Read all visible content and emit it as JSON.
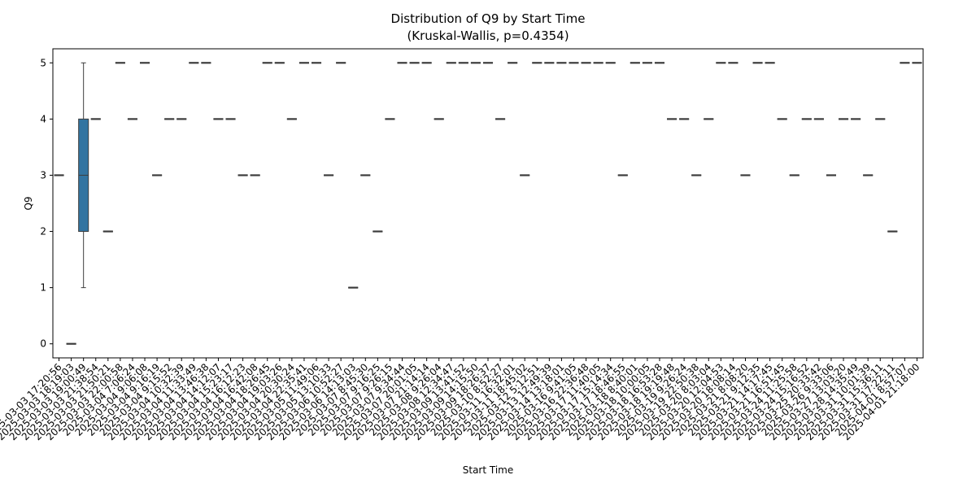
{
  "chart_data": {
    "type": "box",
    "title": "Distribution of Q9 by Start Time",
    "subtitle": "(Kruskal-Wallis, p=0.4354)",
    "x_label": "Start Time",
    "y_label": "Q9",
    "color": "#3274a1",
    "edge_color": "#3d3d3d",
    "ylim": [
      -0.25,
      5.25
    ],
    "yticks": [
      0,
      1,
      2,
      3,
      4,
      5
    ],
    "categories": [
      "2025-03-03 17:20:56",
      "2025-03-03 18:19:03",
      "2025-03-03 19:00:49",
      "2025-03-03 21:38:54",
      "2025-03-03 21:50:21",
      "2025-03-03 22:00:58",
      "2025-03-04 7:06:24",
      "2025-03-04 9:06:08",
      "2025-03-04 9:16:19",
      "2025-03-04 9:15:52",
      "2025-03-04 10:32:39",
      "2025-03-04 11:33:49",
      "2025-03-04 13:46:38",
      "2025-03-04 14:12:07",
      "2025-03-04 15:23:17",
      "2025-03-04 16:12:23",
      "2025-03-04 16:42:08",
      "2025-03-04 18:26:45",
      "2025-03-04 19:03:26",
      "2025-03-04 20:30:24",
      "2025-03-04 22:35:41",
      "2025-03-05 11:49:06",
      "2025-03-05 13:10:33",
      "2025-03-06 10:52:27",
      "2025-03-06 14:13:03",
      "2025-03-07 8:45:30",
      "2025-03-07 9:16:25",
      "2025-03-07 9:26:15",
      "2025-03-07 9:34:44",
      "2025-03-07 20:01:05",
      "2025-03-07 21:14:14",
      "2025-03-08 9:26:04",
      "2025-03-08 12:34:47",
      "2025-03-09 13:41:52",
      "2025-03-09 14:15:50",
      "2025-03-09 18:26:37",
      "2025-03-10 8:52:27",
      "2025-03-11 16:32:01",
      "2025-03-11 18:45:02",
      "2025-03-12 5:12:51",
      "2025-03-13 12:49:39",
      "2025-03-14 13:18:01",
      "2025-03-16 9:41:05",
      "2025-03-16 22:36:48",
      "2025-03-17 11:40:05",
      "2025-03-17 15:14:34",
      "2025-03-17 18:46:55",
      "2025-03-18 8:40:01",
      "2025-03-18 10:00:05",
      "2025-03-18 16:53:28",
      "2025-03-18 19:19:48",
      "2025-03-19 9:26:24",
      "2025-03-19 22:50:38",
      "2025-03-20 8:03:04",
      "2025-03-20 12:04:53",
      "2025-03-20 18:08:14",
      "2025-03-21 8:08:20",
      "2025-03-21 9:12:35",
      "2025-03-21 14:17:45",
      "2025-03-21 16:51:45",
      "2025-03-24 11:25:58",
      "2025-03-24 15:16:52",
      "2025-03-25 20:33:42",
      "2025-03-26 9:33:06",
      "2025-03-27 13:03:20",
      "2025-03-28 14:35:49",
      "2025-03-31 10:01:39",
      "2025-03-31 15:36:11",
      "2025-03-31 17:22:11",
      "2025-04-01 8:57:07",
      "2025-04-01 21:18:00"
    ],
    "boxes": [
      {
        "min": 3,
        "q1": 3,
        "median": 3,
        "q3": 3,
        "max": 3
      },
      {
        "min": 0,
        "q1": 0,
        "median": 0,
        "q3": 0,
        "max": 0
      },
      {
        "min": 1,
        "q1": 2,
        "median": 3,
        "q3": 4,
        "max": 5
      },
      {
        "min": 4,
        "q1": 4,
        "median": 4,
        "q3": 4,
        "max": 4
      },
      {
        "min": 2,
        "q1": 2,
        "median": 2,
        "q3": 2,
        "max": 2
      },
      {
        "min": 5,
        "q1": 5,
        "median": 5,
        "q3": 5,
        "max": 5
      },
      {
        "min": 4,
        "q1": 4,
        "median": 4,
        "q3": 4,
        "max": 4
      },
      {
        "min": 5,
        "q1": 5,
        "median": 5,
        "q3": 5,
        "max": 5
      },
      {
        "min": 3,
        "q1": 3,
        "median": 3,
        "q3": 3,
        "max": 3
      },
      {
        "min": 4,
        "q1": 4,
        "median": 4,
        "q3": 4,
        "max": 4
      },
      {
        "min": 4,
        "q1": 4,
        "median": 4,
        "q3": 4,
        "max": 4
      },
      {
        "min": 5,
        "q1": 5,
        "median": 5,
        "q3": 5,
        "max": 5
      },
      {
        "min": 5,
        "q1": 5,
        "median": 5,
        "q3": 5,
        "max": 5
      },
      {
        "min": 4,
        "q1": 4,
        "median": 4,
        "q3": 4,
        "max": 4
      },
      {
        "min": 4,
        "q1": 4,
        "median": 4,
        "q3": 4,
        "max": 4
      },
      {
        "min": 3,
        "q1": 3,
        "median": 3,
        "q3": 3,
        "max": 3
      },
      {
        "min": 3,
        "q1": 3,
        "median": 3,
        "q3": 3,
        "max": 3
      },
      {
        "min": 5,
        "q1": 5,
        "median": 5,
        "q3": 5,
        "max": 5
      },
      {
        "min": 5,
        "q1": 5,
        "median": 5,
        "q3": 5,
        "max": 5
      },
      {
        "min": 4,
        "q1": 4,
        "median": 4,
        "q3": 4,
        "max": 4
      },
      {
        "min": 5,
        "q1": 5,
        "median": 5,
        "q3": 5,
        "max": 5
      },
      {
        "min": 5,
        "q1": 5,
        "median": 5,
        "q3": 5,
        "max": 5
      },
      {
        "min": 3,
        "q1": 3,
        "median": 3,
        "q3": 3,
        "max": 3
      },
      {
        "min": 5,
        "q1": 5,
        "median": 5,
        "q3": 5,
        "max": 5
      },
      {
        "min": 1,
        "q1": 1,
        "median": 1,
        "q3": 1,
        "max": 1
      },
      {
        "min": 3,
        "q1": 3,
        "median": 3,
        "q3": 3,
        "max": 3
      },
      {
        "min": 2,
        "q1": 2,
        "median": 2,
        "q3": 2,
        "max": 2
      },
      {
        "min": 4,
        "q1": 4,
        "median": 4,
        "q3": 4,
        "max": 4
      },
      {
        "min": 5,
        "q1": 5,
        "median": 5,
        "q3": 5,
        "max": 5
      },
      {
        "min": 5,
        "q1": 5,
        "median": 5,
        "q3": 5,
        "max": 5
      },
      {
        "min": 5,
        "q1": 5,
        "median": 5,
        "q3": 5,
        "max": 5
      },
      {
        "min": 4,
        "q1": 4,
        "median": 4,
        "q3": 4,
        "max": 4
      },
      {
        "min": 5,
        "q1": 5,
        "median": 5,
        "q3": 5,
        "max": 5
      },
      {
        "min": 5,
        "q1": 5,
        "median": 5,
        "q3": 5,
        "max": 5
      },
      {
        "min": 5,
        "q1": 5,
        "median": 5,
        "q3": 5,
        "max": 5
      },
      {
        "min": 5,
        "q1": 5,
        "median": 5,
        "q3": 5,
        "max": 5
      },
      {
        "min": 4,
        "q1": 4,
        "median": 4,
        "q3": 4,
        "max": 4
      },
      {
        "min": 5,
        "q1": 5,
        "median": 5,
        "q3": 5,
        "max": 5
      },
      {
        "min": 3,
        "q1": 3,
        "median": 3,
        "q3": 3,
        "max": 3
      },
      {
        "min": 5,
        "q1": 5,
        "median": 5,
        "q3": 5,
        "max": 5
      },
      {
        "min": 5,
        "q1": 5,
        "median": 5,
        "q3": 5,
        "max": 5
      },
      {
        "min": 5,
        "q1": 5,
        "median": 5,
        "q3": 5,
        "max": 5
      },
      {
        "min": 5,
        "q1": 5,
        "median": 5,
        "q3": 5,
        "max": 5
      },
      {
        "min": 5,
        "q1": 5,
        "median": 5,
        "q3": 5,
        "max": 5
      },
      {
        "min": 5,
        "q1": 5,
        "median": 5,
        "q3": 5,
        "max": 5
      },
      {
        "min": 5,
        "q1": 5,
        "median": 5,
        "q3": 5,
        "max": 5
      },
      {
        "min": 3,
        "q1": 3,
        "median": 3,
        "q3": 3,
        "max": 3
      },
      {
        "min": 5,
        "q1": 5,
        "median": 5,
        "q3": 5,
        "max": 5
      },
      {
        "min": 5,
        "q1": 5,
        "median": 5,
        "q3": 5,
        "max": 5
      },
      {
        "min": 5,
        "q1": 5,
        "median": 5,
        "q3": 5,
        "max": 5
      },
      {
        "min": 4,
        "q1": 4,
        "median": 4,
        "q3": 4,
        "max": 4
      },
      {
        "min": 4,
        "q1": 4,
        "median": 4,
        "q3": 4,
        "max": 4
      },
      {
        "min": 3,
        "q1": 3,
        "median": 3,
        "q3": 3,
        "max": 3
      },
      {
        "min": 4,
        "q1": 4,
        "median": 4,
        "q3": 4,
        "max": 4
      },
      {
        "min": 5,
        "q1": 5,
        "median": 5,
        "q3": 5,
        "max": 5
      },
      {
        "min": 5,
        "q1": 5,
        "median": 5,
        "q3": 5,
        "max": 5
      },
      {
        "min": 3,
        "q1": 3,
        "median": 3,
        "q3": 3,
        "max": 3
      },
      {
        "min": 5,
        "q1": 5,
        "median": 5,
        "q3": 5,
        "max": 5
      },
      {
        "min": 5,
        "q1": 5,
        "median": 5,
        "q3": 5,
        "max": 5
      },
      {
        "min": 4,
        "q1": 4,
        "median": 4,
        "q3": 4,
        "max": 4
      },
      {
        "min": 3,
        "q1": 3,
        "median": 3,
        "q3": 3,
        "max": 3
      },
      {
        "min": 4,
        "q1": 4,
        "median": 4,
        "q3": 4,
        "max": 4
      },
      {
        "min": 4,
        "q1": 4,
        "median": 4,
        "q3": 4,
        "max": 4
      },
      {
        "min": 3,
        "q1": 3,
        "median": 3,
        "q3": 3,
        "max": 3
      },
      {
        "min": 4,
        "q1": 4,
        "median": 4,
        "q3": 4,
        "max": 4
      },
      {
        "min": 4,
        "q1": 4,
        "median": 4,
        "q3": 4,
        "max": 4
      },
      {
        "min": 3,
        "q1": 3,
        "median": 3,
        "q3": 3,
        "max": 3
      },
      {
        "min": 4,
        "q1": 4,
        "median": 4,
        "q3": 4,
        "max": 4
      },
      {
        "min": 2,
        "q1": 2,
        "median": 2,
        "q3": 2,
        "max": 2
      },
      {
        "min": 5,
        "q1": 5,
        "median": 5,
        "q3": 5,
        "max": 5
      },
      {
        "min": 5,
        "q1": 5,
        "median": 5,
        "q3": 5,
        "max": 5
      }
    ]
  }
}
